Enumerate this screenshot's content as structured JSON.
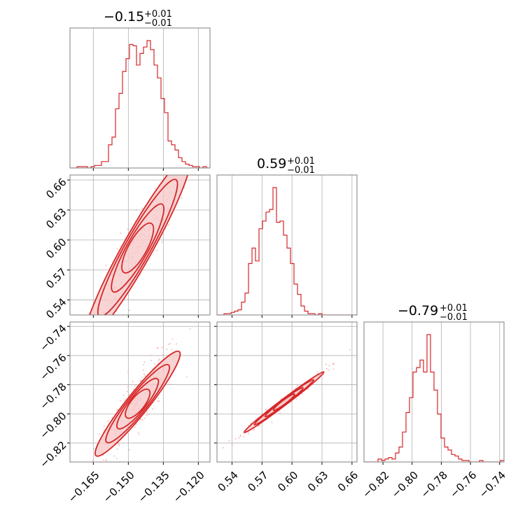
{
  "colors": {
    "accent": "#d62728",
    "scatter": "#f2a3a3",
    "fill": "#f6c9c9",
    "grid": "#b0b0b0",
    "frame": "#808080"
  },
  "chart_data": {
    "type": "corner",
    "grid": true,
    "parameters": [
      {
        "range": [
          -0.175,
          -0.115
        ],
        "ticks": [
          -0.165,
          -0.15,
          -0.135,
          -0.12
        ],
        "tick_labels": [
          "−0.165",
          "−0.150",
          "−0.135",
          "−0.120"
        ],
        "summary": {
          "median": "−0.15",
          "plus": "+0.01",
          "minus": "−0.01"
        },
        "histogram": {
          "bin_edges_start": -0.175,
          "bin_width": 0.0015,
          "counts": [
            0,
            0,
            1,
            1,
            1,
            0,
            1,
            2,
            2,
            5,
            5,
            18,
            24,
            46,
            58,
            75,
            85,
            96,
            95,
            80,
            89,
            94,
            99,
            92,
            80,
            70,
            54,
            43,
            21,
            18,
            14,
            8,
            5,
            3,
            2,
            1,
            1,
            0,
            1,
            0
          ]
        }
      },
      {
        "range": [
          0.525,
          0.665
        ],
        "ticks": [
          0.54,
          0.57,
          0.6,
          0.63,
          0.66
        ],
        "tick_labels": [
          "0.54",
          "0.57",
          "0.60",
          "0.63",
          "0.66"
        ],
        "summary": {
          "median": "0.59",
          "plus": "+0.01",
          "minus": "−0.01"
        },
        "histogram": {
          "bin_edges_start": 0.525,
          "bin_width": 0.0035,
          "counts": [
            0,
            0,
            1,
            1,
            2,
            3,
            4,
            10,
            17,
            40,
            52,
            42,
            67,
            73,
            80,
            82,
            99,
            72,
            73,
            62,
            52,
            40,
            24,
            16,
            7,
            3,
            1,
            1,
            0,
            1,
            0,
            0,
            0,
            0,
            0,
            0,
            0,
            0,
            0,
            0
          ]
        }
      },
      {
        "range": [
          -0.833,
          -0.737
        ],
        "ticks": [
          -0.82,
          -0.8,
          -0.78,
          -0.76,
          -0.74
        ],
        "tick_labels": [
          "−0.82",
          "−0.80",
          "−0.78",
          "−0.76",
          "−0.74"
        ],
        "summary": {
          "median": "−0.79",
          "plus": "+0.01",
          "minus": "−0.01"
        },
        "histogram": {
          "bin_edges_start": -0.833,
          "bin_width": 0.0024,
          "counts": [
            0,
            0,
            0,
            0,
            2,
            1,
            2,
            3,
            2,
            6,
            10,
            20,
            33,
            43,
            60,
            63,
            68,
            60,
            85,
            60,
            48,
            32,
            16,
            10,
            8,
            5,
            4,
            2,
            1,
            1,
            0,
            0,
            0,
            1,
            0,
            0,
            0,
            0,
            0,
            1
          ]
        }
      }
    ],
    "pairs": [
      {
        "x_param": 0,
        "y_param": 1,
        "slope": 4.17,
        "center": [
          -0.146,
          0.592
        ],
        "half_length": 0.021,
        "half_width": 0.0025,
        "data_end": 0.63
      },
      {
        "x_param": 0,
        "y_param": 2,
        "slope": 2.0,
        "center": [
          -0.146,
          -0.793
        ],
        "half_length": 0.017,
        "half_width": 0.0022,
        "data_end": -0.765
      },
      {
        "x_param": 1,
        "y_param": 2,
        "slope": 0.52,
        "center": [
          0.592,
          -0.792
        ],
        "half_length": 0.038,
        "half_width": 0.0009,
        "data_end": 0.645
      }
    ]
  }
}
